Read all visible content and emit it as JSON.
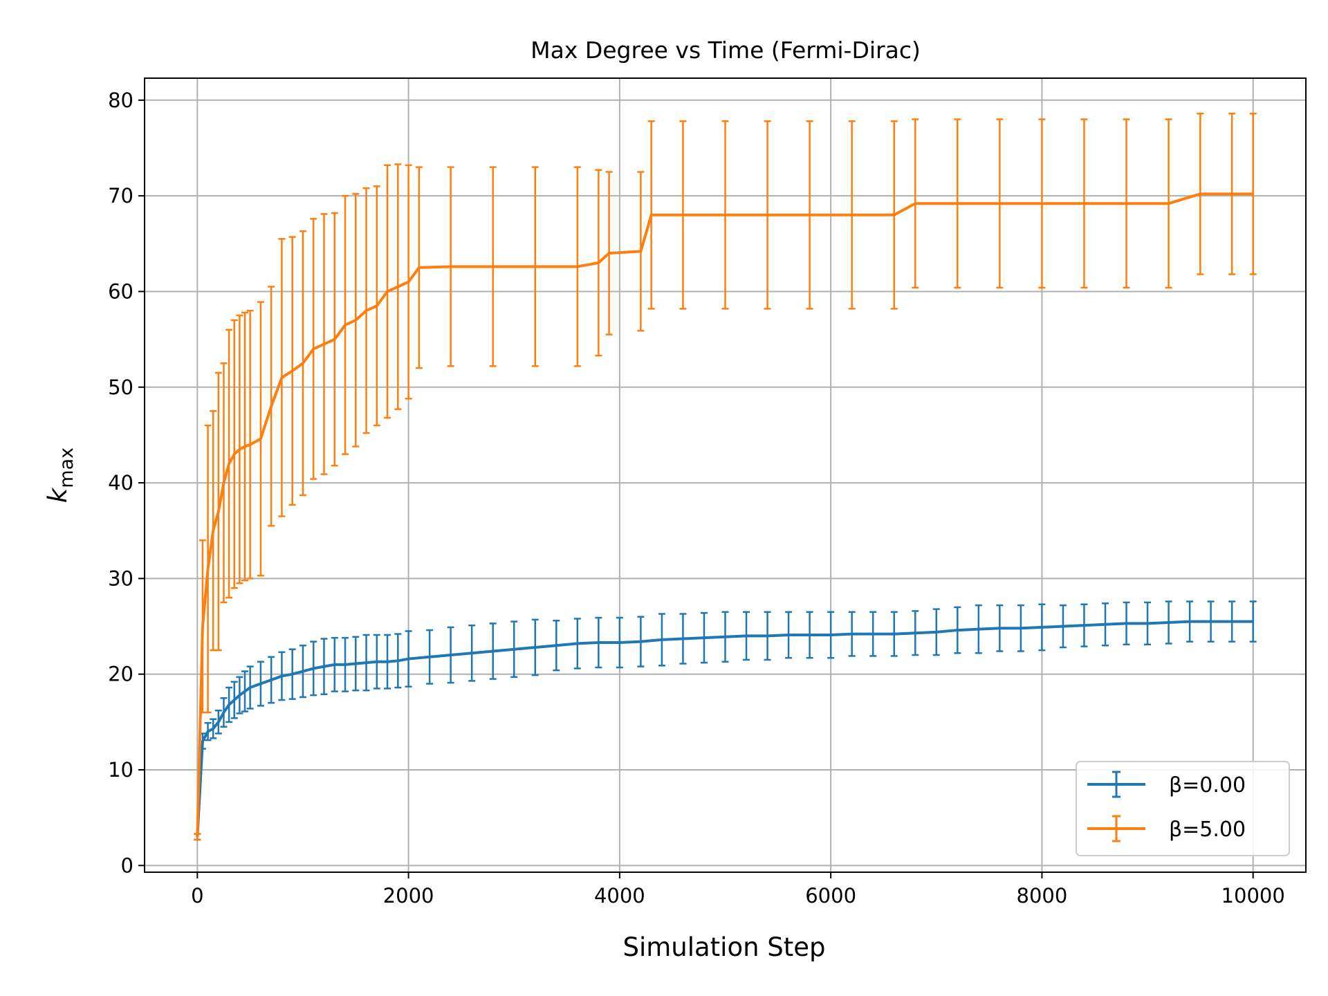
{
  "chart_data": {
    "type": "line",
    "title": "Max Degree vs Time (Fermi-Dirac)",
    "xlabel": "Simulation Step",
    "ylabel_main": "k",
    "ylabel_sub": "max",
    "xlim": [
      -500,
      10500
    ],
    "ylim": [
      -0.7,
      82.3
    ],
    "xticks": [
      0,
      2000,
      4000,
      6000,
      8000,
      10000
    ],
    "yticks": [
      0,
      10,
      20,
      30,
      40,
      50,
      60,
      70,
      80
    ],
    "grid": true,
    "legend_position": "lower right",
    "error_bars": true,
    "series": [
      {
        "name": "β=0.00",
        "color": "#1f77b4",
        "points": [
          [
            0,
            3.0,
            0.3
          ],
          [
            50,
            13.0,
            0.8
          ],
          [
            100,
            14.0,
            0.9
          ],
          [
            150,
            14.3,
            1.0
          ],
          [
            200,
            15.0,
            1.2
          ],
          [
            250,
            16.0,
            1.5
          ],
          [
            300,
            16.8,
            1.8
          ],
          [
            350,
            17.3,
            1.9
          ],
          [
            400,
            17.8,
            1.9
          ],
          [
            450,
            18.2,
            2.1
          ],
          [
            500,
            18.6,
            2.2
          ],
          [
            600,
            19.0,
            2.3
          ],
          [
            700,
            19.4,
            2.4
          ],
          [
            800,
            19.8,
            2.5
          ],
          [
            900,
            20.0,
            2.6
          ],
          [
            1000,
            20.3,
            2.7
          ],
          [
            1100,
            20.6,
            2.8
          ],
          [
            1200,
            20.8,
            2.9
          ],
          [
            1300,
            21.0,
            2.8
          ],
          [
            1400,
            21.0,
            2.8
          ],
          [
            1500,
            21.1,
            2.8
          ],
          [
            1600,
            21.2,
            2.9
          ],
          [
            1700,
            21.3,
            2.8
          ],
          [
            1800,
            21.3,
            2.8
          ],
          [
            1900,
            21.4,
            2.8
          ],
          [
            2000,
            21.6,
            2.9
          ],
          [
            2200,
            21.8,
            2.8
          ],
          [
            2400,
            22.0,
            2.9
          ],
          [
            2600,
            22.2,
            2.9
          ],
          [
            2800,
            22.4,
            2.9
          ],
          [
            3000,
            22.6,
            2.9
          ],
          [
            3200,
            22.8,
            2.9
          ],
          [
            3400,
            23.0,
            2.6
          ],
          [
            3600,
            23.2,
            2.6
          ],
          [
            3800,
            23.3,
            2.6
          ],
          [
            4000,
            23.3,
            2.6
          ],
          [
            4200,
            23.4,
            2.6
          ],
          [
            4400,
            23.6,
            2.7
          ],
          [
            4600,
            23.7,
            2.6
          ],
          [
            4800,
            23.8,
            2.6
          ],
          [
            5000,
            23.9,
            2.6
          ],
          [
            5200,
            24.0,
            2.5
          ],
          [
            5400,
            24.0,
            2.5
          ],
          [
            5600,
            24.1,
            2.4
          ],
          [
            5800,
            24.1,
            2.4
          ],
          [
            6000,
            24.1,
            2.4
          ],
          [
            6200,
            24.2,
            2.3
          ],
          [
            6400,
            24.2,
            2.3
          ],
          [
            6600,
            24.2,
            2.3
          ],
          [
            6800,
            24.3,
            2.3
          ],
          [
            7000,
            24.4,
            2.4
          ],
          [
            7200,
            24.6,
            2.4
          ],
          [
            7400,
            24.7,
            2.5
          ],
          [
            7600,
            24.8,
            2.4
          ],
          [
            7800,
            24.8,
            2.4
          ],
          [
            8000,
            24.9,
            2.4
          ],
          [
            8200,
            25.0,
            2.2
          ],
          [
            8400,
            25.1,
            2.2
          ],
          [
            8600,
            25.2,
            2.2
          ],
          [
            8800,
            25.3,
            2.2
          ],
          [
            9000,
            25.3,
            2.2
          ],
          [
            9200,
            25.4,
            2.2
          ],
          [
            9400,
            25.5,
            2.1
          ],
          [
            9600,
            25.5,
            2.1
          ],
          [
            9800,
            25.5,
            2.1
          ],
          [
            10000,
            25.5,
            2.1
          ]
        ]
      },
      {
        "name": "β=5.00",
        "color": "#ff7f0e",
        "points": [
          [
            0,
            3.0,
            0.3
          ],
          [
            50,
            25.0,
            9.0
          ],
          [
            100,
            31.0,
            15.0
          ],
          [
            150,
            35.0,
            12.5
          ],
          [
            200,
            37.0,
            14.5
          ],
          [
            250,
            40.0,
            12.5
          ],
          [
            300,
            42.0,
            14.0
          ],
          [
            350,
            43.0,
            14.0
          ],
          [
            400,
            43.5,
            14.0
          ],
          [
            450,
            43.8,
            14.0
          ],
          [
            500,
            44.0,
            14.0
          ],
          [
            600,
            44.6,
            14.3
          ],
          [
            700,
            48.0,
            12.5
          ],
          [
            800,
            51.0,
            14.5
          ],
          [
            900,
            51.7,
            14.0
          ],
          [
            1000,
            52.5,
            13.8
          ],
          [
            1100,
            54.0,
            13.6
          ],
          [
            1200,
            54.5,
            13.6
          ],
          [
            1300,
            55.0,
            13.2
          ],
          [
            1400,
            56.5,
            13.5
          ],
          [
            1500,
            57.0,
            13.2
          ],
          [
            1600,
            58.0,
            12.8
          ],
          [
            1700,
            58.5,
            12.5
          ],
          [
            1800,
            60.0,
            13.2
          ],
          [
            1900,
            60.5,
            12.8
          ],
          [
            2000,
            61.0,
            12.2
          ],
          [
            2100,
            62.5,
            10.5
          ],
          [
            2400,
            62.6,
            10.4
          ],
          [
            2800,
            62.6,
            10.4
          ],
          [
            3200,
            62.6,
            10.4
          ],
          [
            3600,
            62.6,
            10.4
          ],
          [
            3800,
            63.0,
            9.7
          ],
          [
            3900,
            64.0,
            8.5
          ],
          [
            4200,
            64.2,
            8.3
          ],
          [
            4300,
            68.0,
            9.8
          ],
          [
            4600,
            68.0,
            9.8
          ],
          [
            5000,
            68.0,
            9.8
          ],
          [
            5400,
            68.0,
            9.8
          ],
          [
            5800,
            68.0,
            9.8
          ],
          [
            6200,
            68.0,
            9.8
          ],
          [
            6600,
            68.0,
            9.8
          ],
          [
            6800,
            69.2,
            8.8
          ],
          [
            7200,
            69.2,
            8.8
          ],
          [
            7600,
            69.2,
            8.8
          ],
          [
            8000,
            69.2,
            8.8
          ],
          [
            8400,
            69.2,
            8.8
          ],
          [
            8800,
            69.2,
            8.8
          ],
          [
            9200,
            69.2,
            8.8
          ],
          [
            9500,
            70.2,
            8.4
          ],
          [
            9800,
            70.2,
            8.4
          ],
          [
            10000,
            70.2,
            8.4
          ]
        ]
      }
    ]
  }
}
